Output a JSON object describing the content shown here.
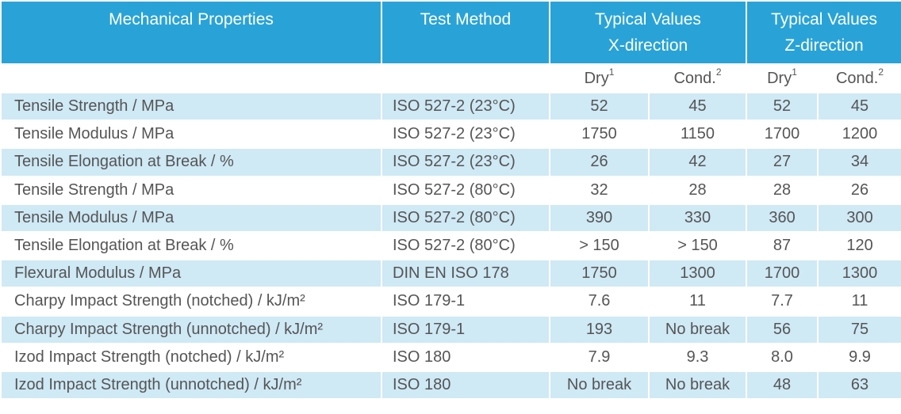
{
  "table": {
    "header": [
      {
        "lines": [
          "Mechanical Properties"
        ]
      },
      {
        "lines": [
          "Test Method"
        ]
      },
      {
        "lines": [
          "Typical Values",
          "X-direction"
        ]
      },
      {
        "lines": [
          "Typical Values",
          "Z-direction"
        ]
      }
    ],
    "subheader": [
      {
        "label": "Dry",
        "note": "1"
      },
      {
        "label": "Cond.",
        "note": "2"
      },
      {
        "label": "Dry",
        "note": "1"
      },
      {
        "label": "Cond.",
        "note": "2"
      }
    ],
    "rows": [
      [
        "Tensile Strength / MPa",
        "ISO 527-2 (23°C)",
        "52",
        "45",
        "52",
        "45"
      ],
      [
        "Tensile Modulus / MPa",
        "ISO 527-2 (23°C)",
        "1750",
        "1150",
        "1700",
        "1200"
      ],
      [
        "Tensile Elongation at Break / %",
        "ISO 527-2 (23°C)",
        "26",
        "42",
        "27",
        "34"
      ],
      [
        "Tensile Strength / MPa",
        "ISO 527-2 (80°C)",
        "32",
        "28",
        "28",
        "26"
      ],
      [
        "Tensile Modulus / MPa",
        "ISO 527-2 (80°C)",
        "390",
        "330",
        "360",
        "300"
      ],
      [
        "Tensile Elongation at Break / %",
        "ISO 527-2 (80°C)",
        "> 150",
        "> 150",
        "87",
        "120"
      ],
      [
        "Flexural Modulus / MPa",
        "DIN EN ISO 178",
        "1750",
        "1300",
        "1700",
        "1300"
      ],
      [
        "Charpy Impact Strength (notched) / kJ/m²",
        "ISO 179-1",
        "7.6",
        "11",
        "7.7",
        "11"
      ],
      [
        "Charpy Impact Strength (unnotched) / kJ/m²",
        "ISO 179-1",
        "193",
        "No break",
        "56",
        "75"
      ],
      [
        "Izod Impact Strength (notched) / kJ/m²",
        "ISO 180",
        "7.9",
        "9.3",
        "8.0",
        "9.9"
      ],
      [
        "Izod Impact Strength (unnotched) / kJ/m²",
        "ISO 180",
        "No break",
        "No break",
        "48",
        "63"
      ]
    ]
  }
}
